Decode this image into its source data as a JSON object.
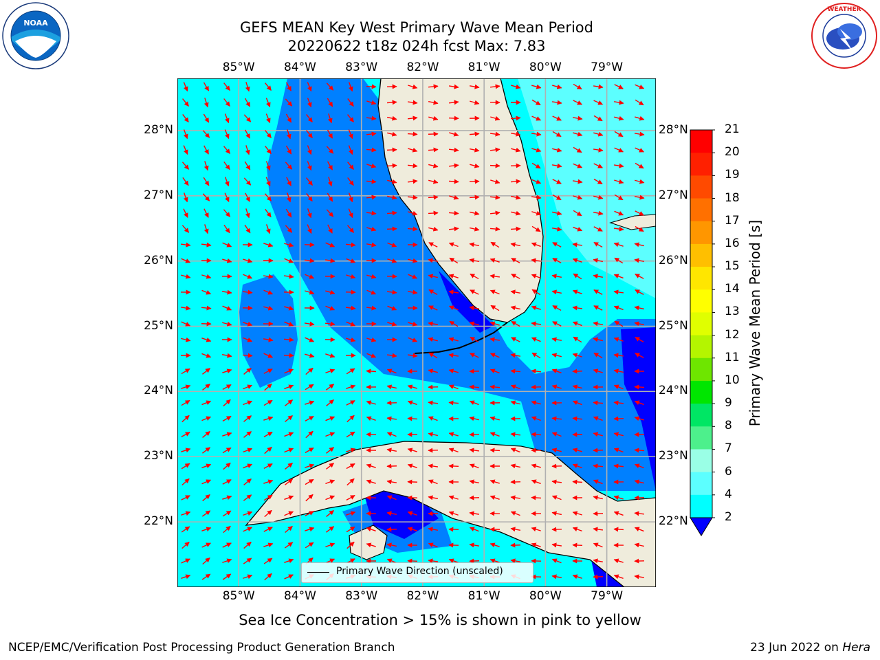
{
  "title": {
    "line1": "GEFS MEAN Key West Primary Wave Mean Period",
    "line2": "20220622 t18z 024h fcst   Max: 7.83"
  },
  "logos": {
    "left": {
      "icon": "noaa-logo-icon",
      "text": "NOAA"
    },
    "right": {
      "icon": "nws-logo-icon",
      "text": "NATIONAL WEATHER SERVICE"
    }
  },
  "map": {
    "lon_labels": [
      "85°W",
      "84°W",
      "83°W",
      "82°W",
      "81°W",
      "80°W",
      "79°W"
    ],
    "lat_labels": [
      "28°N",
      "27°N",
      "26°N",
      "25°N",
      "24°N",
      "23°N",
      "22°N"
    ],
    "lon_range": [
      -86.0,
      -78.2
    ],
    "lat_range": [
      21.0,
      28.8
    ],
    "land_color": "#efecdc",
    "grid": true,
    "legend_label": "Primary Wave Direction (unscaled)",
    "arrow_color": "#ff0000"
  },
  "colorbar": {
    "label": "Primary Wave Mean Period [s]",
    "ticks": [
      "21",
      "20",
      "19",
      "18",
      "17",
      "16",
      "15",
      "14",
      "13",
      "12",
      "11",
      "10",
      "9",
      "8",
      "7",
      "6",
      "4",
      "2"
    ],
    "colors": [
      "#ff0000",
      "#ff2000",
      "#ff4a00",
      "#ff7000",
      "#ff9600",
      "#ffbf00",
      "#ffe600",
      "#ffff00",
      "#e0ff00",
      "#b4f500",
      "#6ee600",
      "#00e600",
      "#00e664",
      "#4df08c",
      "#9affe6",
      "#5cffff",
      "#00ffff",
      "#00e1ff",
      "#0080ff",
      "#0000ff"
    ],
    "extend_color": "#0000ff"
  },
  "ice_note": "Sea Ice Concentration > 15% is shown in pink to yellow",
  "footer": {
    "left": "NCEP/EMC/Verification Post Processing Product Generation Branch",
    "right_date": "23 Jun 2022 on ",
    "right_host": "Hera"
  }
}
